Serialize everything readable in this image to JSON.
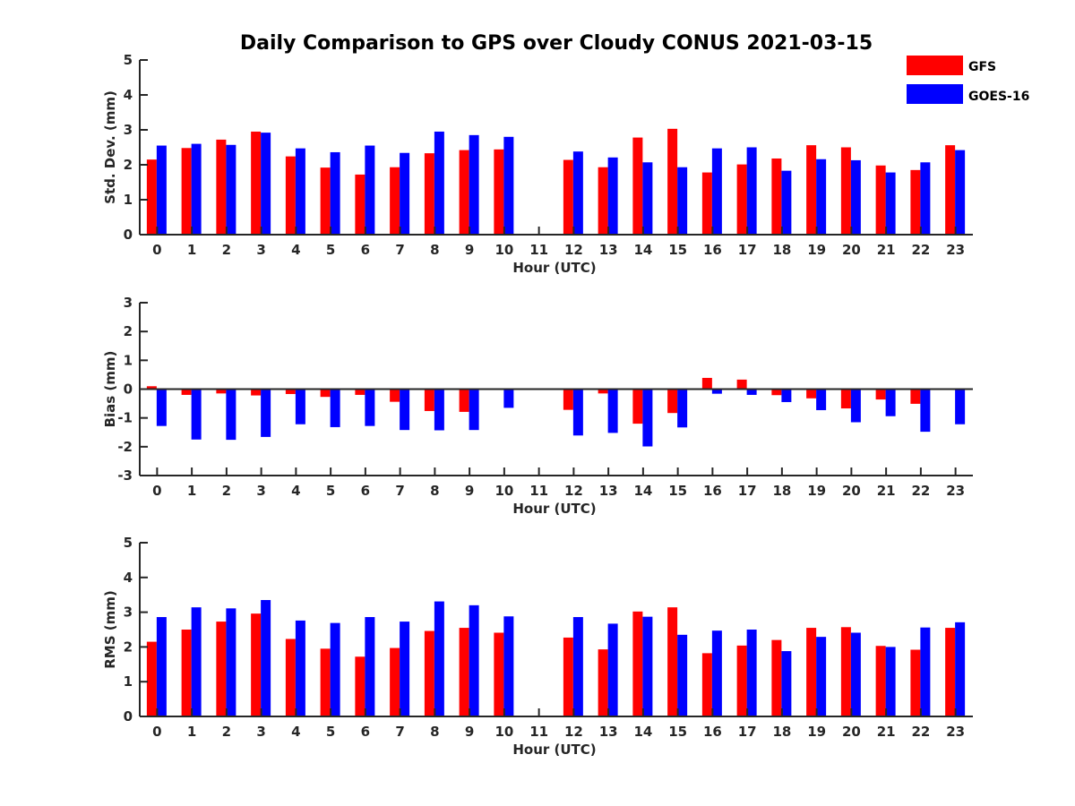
{
  "figure": {
    "title": "Daily Comparison to GPS over Cloudy CONUS 2021-03-15"
  },
  "legend": [
    {
      "name": "GFS",
      "color": "#ff0000"
    },
    {
      "name": "GOES-16",
      "color": "#0000ff"
    }
  ],
  "chart_data": [
    {
      "type": "bar",
      "ylabel": "Std. Dev. (mm)",
      "xlabel": "Hour (UTC)",
      "ylim": [
        0,
        5
      ],
      "yticks": [
        0,
        1,
        2,
        3,
        4,
        5
      ],
      "categories": [
        "0",
        "1",
        "2",
        "3",
        "4",
        "5",
        "6",
        "7",
        "8",
        "9",
        "10",
        "11",
        "12",
        "13",
        "14",
        "15",
        "16",
        "17",
        "18",
        "19",
        "20",
        "21",
        "22",
        "23"
      ],
      "series": [
        {
          "name": "GFS",
          "color": "#ff0000",
          "values": [
            2.15,
            2.48,
            2.72,
            2.95,
            2.24,
            1.92,
            1.72,
            1.93,
            2.33,
            2.42,
            2.44,
            null,
            2.14,
            1.93,
            2.78,
            3.03,
            1.78,
            2.01,
            2.18,
            2.56,
            2.5,
            1.98,
            1.85,
            2.56
          ]
        },
        {
          "name": "GOES-16",
          "color": "#0000ff",
          "values": [
            2.55,
            2.6,
            2.57,
            2.92,
            2.47,
            2.36,
            2.55,
            2.34,
            2.95,
            2.85,
            2.8,
            null,
            2.38,
            2.21,
            2.07,
            1.93,
            2.47,
            2.5,
            1.83,
            2.16,
            2.13,
            1.78,
            2.07,
            2.42
          ]
        }
      ]
    },
    {
      "type": "bar",
      "ylabel": "Bias (mm)",
      "xlabel": "Hour (UTC)",
      "ylim": [
        -3,
        3
      ],
      "yticks": [
        -3,
        -2,
        -1,
        0,
        1,
        2,
        3
      ],
      "categories": [
        "0",
        "1",
        "2",
        "3",
        "4",
        "5",
        "6",
        "7",
        "8",
        "9",
        "10",
        "11",
        "12",
        "13",
        "14",
        "15",
        "16",
        "17",
        "18",
        "19",
        "20",
        "21",
        "22",
        "23"
      ],
      "series": [
        {
          "name": "GFS",
          "color": "#ff0000",
          "values": [
            0.1,
            -0.2,
            -0.15,
            -0.22,
            -0.17,
            -0.27,
            -0.2,
            -0.44,
            -0.76,
            -0.79,
            -0.01,
            null,
            -0.72,
            -0.15,
            -1.2,
            -0.83,
            0.39,
            0.33,
            -0.21,
            -0.32,
            -0.67,
            -0.36,
            -0.51,
            -0.03
          ]
        },
        {
          "name": "GOES-16",
          "color": "#0000ff",
          "values": [
            -1.28,
            -1.75,
            -1.76,
            -1.66,
            -1.22,
            -1.32,
            -1.28,
            -1.42,
            -1.43,
            -1.42,
            -0.65,
            null,
            -1.61,
            -1.52,
            -1.99,
            -1.33,
            -0.16,
            -0.2,
            -0.45,
            -0.73,
            -1.15,
            -0.94,
            -1.48,
            -1.22
          ]
        }
      ]
    },
    {
      "type": "bar",
      "ylabel": "RMS (mm)",
      "xlabel": "Hour (UTC)",
      "ylim": [
        0,
        5
      ],
      "yticks": [
        0,
        1,
        2,
        3,
        4,
        5
      ],
      "categories": [
        "0",
        "1",
        "2",
        "3",
        "4",
        "5",
        "6",
        "7",
        "8",
        "9",
        "10",
        "11",
        "12",
        "13",
        "14",
        "15",
        "16",
        "17",
        "18",
        "19",
        "20",
        "21",
        "22",
        "23"
      ],
      "series": [
        {
          "name": "GFS",
          "color": "#ff0000",
          "values": [
            2.15,
            2.5,
            2.73,
            2.96,
            2.23,
            1.95,
            1.72,
            1.97,
            2.46,
            2.55,
            2.41,
            null,
            2.27,
            1.93,
            3.02,
            3.14,
            1.82,
            2.04,
            2.2,
            2.55,
            2.57,
            2.03,
            1.92,
            2.55
          ]
        },
        {
          "name": "GOES-16",
          "color": "#0000ff",
          "values": [
            2.86,
            3.14,
            3.11,
            3.35,
            2.76,
            2.69,
            2.86,
            2.73,
            3.31,
            3.2,
            2.88,
            null,
            2.86,
            2.67,
            2.87,
            2.35,
            2.47,
            2.5,
            1.88,
            2.29,
            2.41,
            2.0,
            2.56,
            2.71
          ]
        }
      ]
    }
  ]
}
